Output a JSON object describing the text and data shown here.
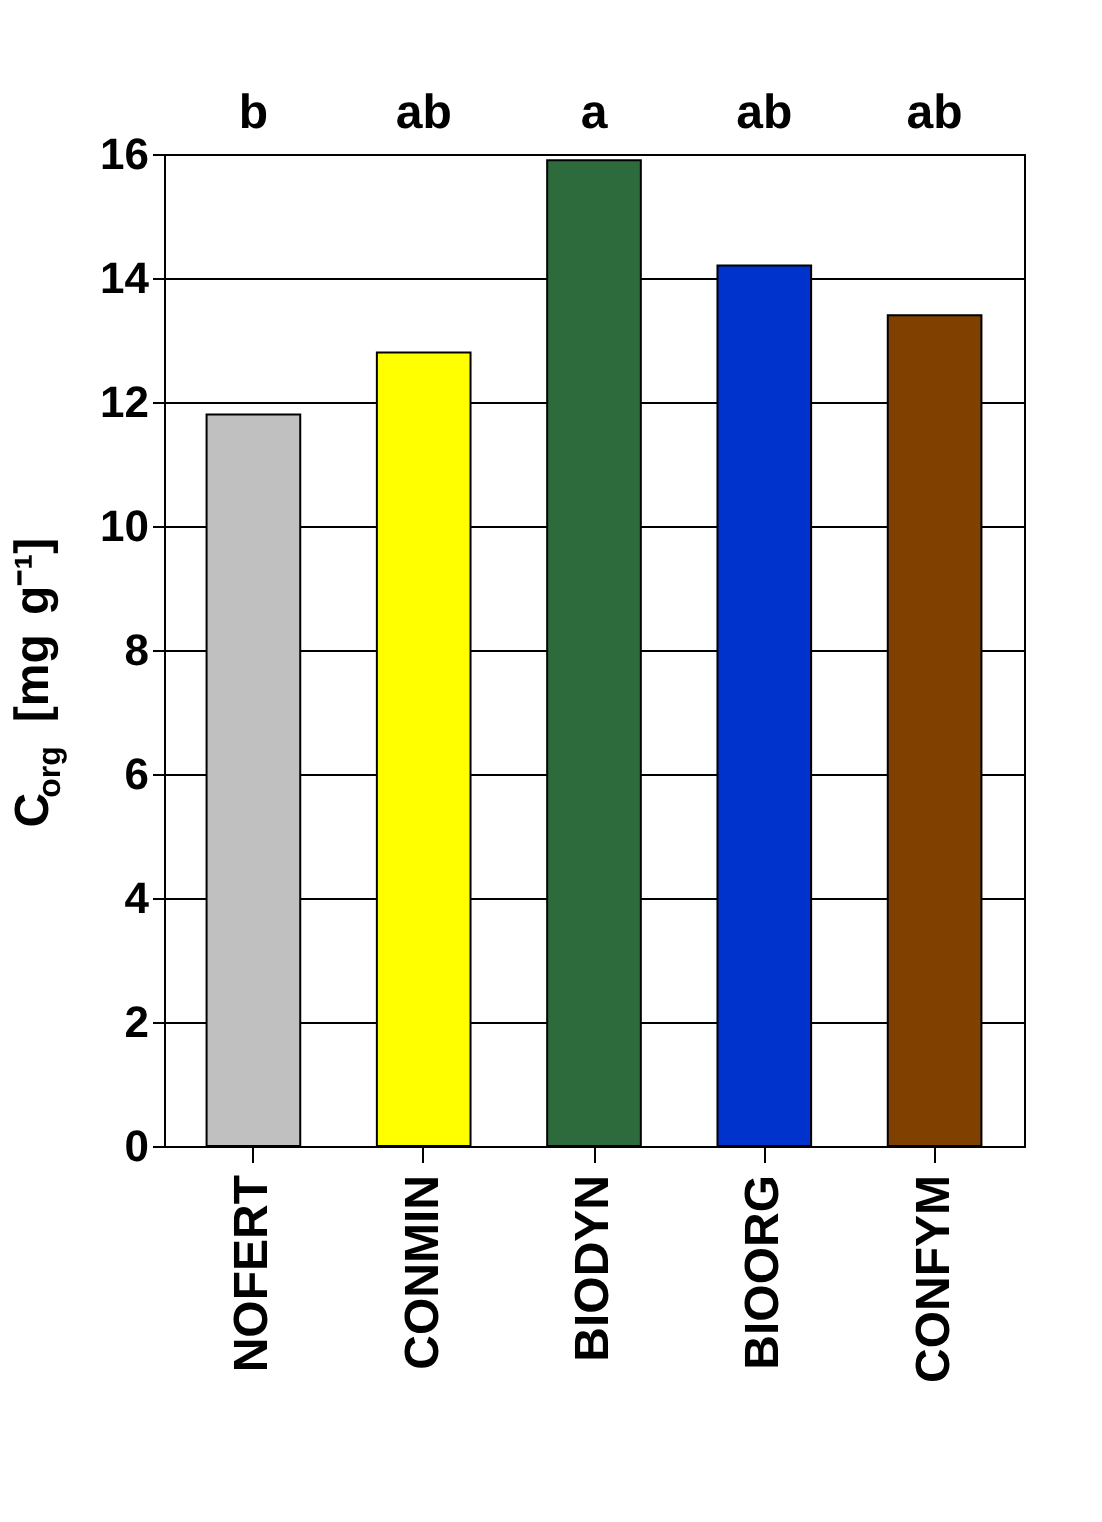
{
  "chart_data": {
    "type": "bar",
    "ylabel": "C$_{org}$ [mg g⁻¹]",
    "categories": [
      "NOFERT",
      "CONMIN",
      "BIODYN",
      "BIOORG",
      "CONFYM"
    ],
    "values": [
      11.8,
      12.8,
      15.9,
      14.2,
      13.4
    ],
    "colors": [
      "#c0c0c0",
      "#ffff00",
      "#2e6b3c",
      "#0033cc",
      "#7f4000"
    ],
    "ylim": [
      0,
      16
    ],
    "yticks": [
      0,
      2,
      4,
      6,
      8,
      10,
      12,
      14,
      16
    ],
    "grid": "y",
    "annotations": [
      "b",
      "ab",
      "a",
      "ab",
      "ab"
    ]
  }
}
